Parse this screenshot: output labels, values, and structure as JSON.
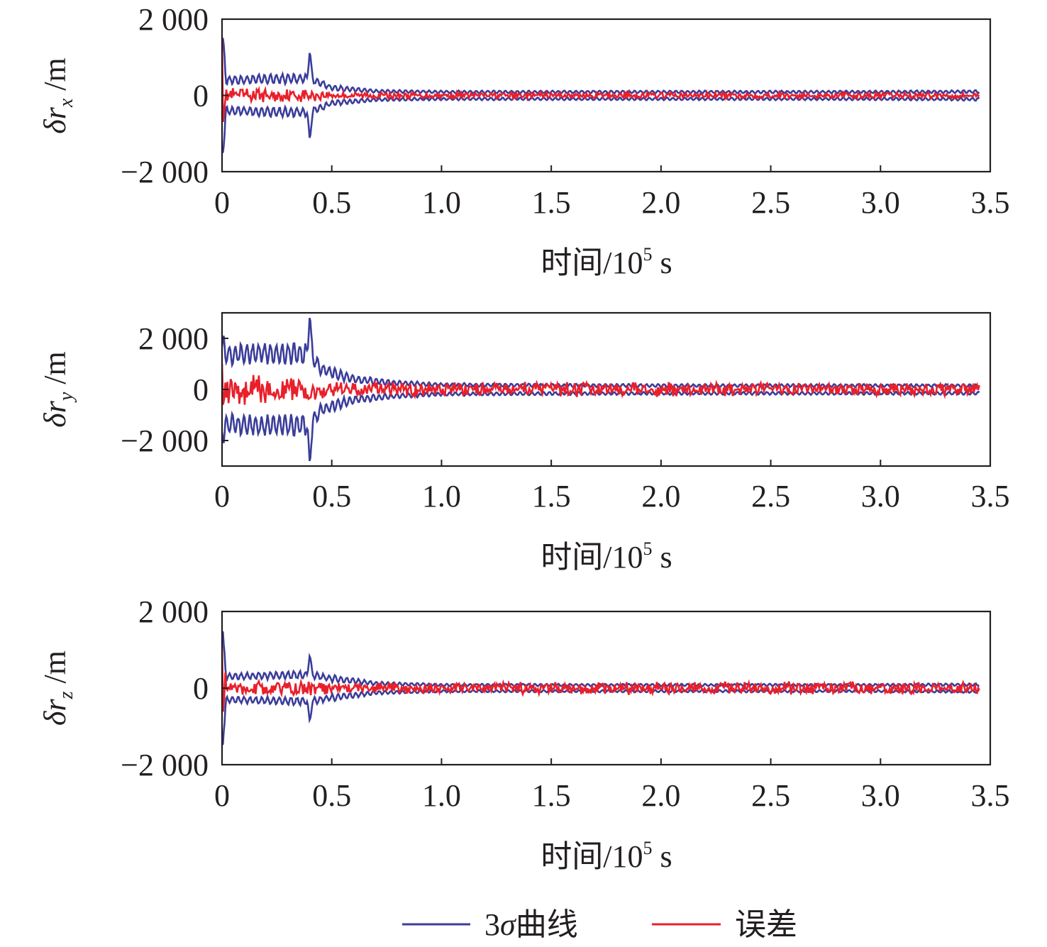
{
  "colors": {
    "sigma": "#3b3d9a",
    "error": "#e8202b",
    "axis": "#231f20",
    "background": "#ffffff"
  },
  "legend": {
    "items": [
      {
        "key": "sigma",
        "label_prefix": "3",
        "label_symbol": "σ",
        "label_suffix": "曲线"
      },
      {
        "key": "error",
        "label_prefix": "误差",
        "label_symbol": "",
        "label_suffix": ""
      }
    ]
  },
  "chart_data": [
    {
      "type": "line",
      "panel": "rx",
      "ylabel": {
        "prefix": "δ",
        "var": "r",
        "sub": "x",
        "unit": "/m"
      },
      "xlabel": {
        "prefix": "时间/10",
        "sup": "5",
        "suffix": " s"
      },
      "xlim": [
        0,
        3.5
      ],
      "ylim": [
        -2000,
        2000
      ],
      "xticks": [
        0,
        0.5,
        1.0,
        1.5,
        2.0,
        2.5,
        3.0,
        3.5
      ],
      "xtick_labels": [
        "0",
        "0.5",
        "1.0",
        "1.5",
        "2.0",
        "2.5",
        "3.0",
        "3.5"
      ],
      "yticks": [
        -2000,
        0,
        2000
      ],
      "ytick_labels": [
        "−2 000",
        "0",
        "2 000"
      ],
      "series": [
        {
          "key": "sigma",
          "name": "3σ曲线",
          "x": [
            0,
            0.02,
            0.4,
            0.5,
            0.7,
            1.0,
            1.5,
            2.0,
            2.5,
            3.0,
            3.45
          ],
          "upper": [
            1500,
            400,
            450,
            200,
            110,
            90,
            90,
            90,
            90,
            90,
            100
          ],
          "spike": {
            "x": 0.4,
            "value": 1200
          }
        },
        {
          "key": "error",
          "name": "误差",
          "x": [
            0,
            0.02,
            0.4,
            0.5,
            1.0,
            2.0,
            3.0,
            3.45
          ],
          "amp": [
            1500,
            200,
            180,
            100,
            80,
            80,
            80,
            80
          ]
        }
      ]
    },
    {
      "type": "line",
      "panel": "ry",
      "ylabel": {
        "prefix": "δ",
        "var": "r",
        "sub": "y",
        "unit": "/m"
      },
      "xlabel": {
        "prefix": "时间/10",
        "sup": "5",
        "suffix": " s"
      },
      "xlim": [
        0,
        3.5
      ],
      "ylim": [
        -3000,
        3000
      ],
      "xticks": [
        0,
        0.5,
        1.0,
        1.5,
        2.0,
        2.5,
        3.0,
        3.5
      ],
      "xtick_labels": [
        "0",
        "0.5",
        "1.0",
        "1.5",
        "2.0",
        "2.5",
        "3.0",
        "3.5"
      ],
      "yticks": [
        -2000,
        0,
        2000
      ],
      "ytick_labels": [
        "−2 000",
        "0",
        "2 000"
      ],
      "series": [
        {
          "key": "sigma",
          "name": "3σ曲线",
          "x": [
            0,
            0.02,
            0.4,
            0.45,
            0.6,
            0.8,
            1.0,
            1.5,
            2.0,
            2.5,
            3.0,
            3.45
          ],
          "upper": [
            1800,
            1400,
            1400,
            800,
            400,
            250,
            180,
            160,
            150,
            150,
            150,
            150
          ],
          "spike": {
            "x": 0.4,
            "value": 3000
          }
        },
        {
          "key": "error",
          "name": "误差",
          "x": [
            0,
            0.02,
            0.4,
            0.5,
            1.0,
            1.5,
            2.0,
            3.0,
            3.45
          ],
          "amp": [
            1000,
            700,
            500,
            300,
            300,
            300,
            300,
            250,
            250
          ]
        }
      ]
    },
    {
      "type": "line",
      "panel": "rz",
      "ylabel": {
        "prefix": "δ",
        "var": "r",
        "sub": "z",
        "unit": "/m"
      },
      "xlabel": {
        "prefix": "时间/10",
        "sup": "5",
        "suffix": " s"
      },
      "xlim": [
        0,
        3.5
      ],
      "ylim": [
        -2000,
        2000
      ],
      "xticks": [
        0,
        0.5,
        1.0,
        1.5,
        2.0,
        2.5,
        3.0,
        3.5
      ],
      "xtick_labels": [
        "0",
        "0.5",
        "1.0",
        "1.5",
        "2.0",
        "2.5",
        "3.0",
        "3.5"
      ],
      "yticks": [
        -2000,
        0,
        2000
      ],
      "ytick_labels": [
        "−2 000",
        "0",
        "2 000"
      ],
      "series": [
        {
          "key": "sigma",
          "name": "3σ曲线",
          "x": [
            0,
            0.02,
            0.4,
            0.5,
            0.7,
            1.0,
            1.5,
            2.0,
            2.5,
            3.0,
            3.45
          ],
          "upper": [
            1400,
            300,
            350,
            250,
            120,
            80,
            80,
            80,
            80,
            80,
            90
          ],
          "spike": {
            "x": 0.4,
            "value": 900
          }
        },
        {
          "key": "error",
          "name": "误差",
          "x": [
            0,
            0.02,
            0.4,
            0.5,
            1.0,
            1.5,
            2.0,
            3.0,
            3.45
          ],
          "amp": [
            1100,
            200,
            200,
            150,
            150,
            180,
            180,
            180,
            150
          ]
        }
      ]
    }
  ]
}
